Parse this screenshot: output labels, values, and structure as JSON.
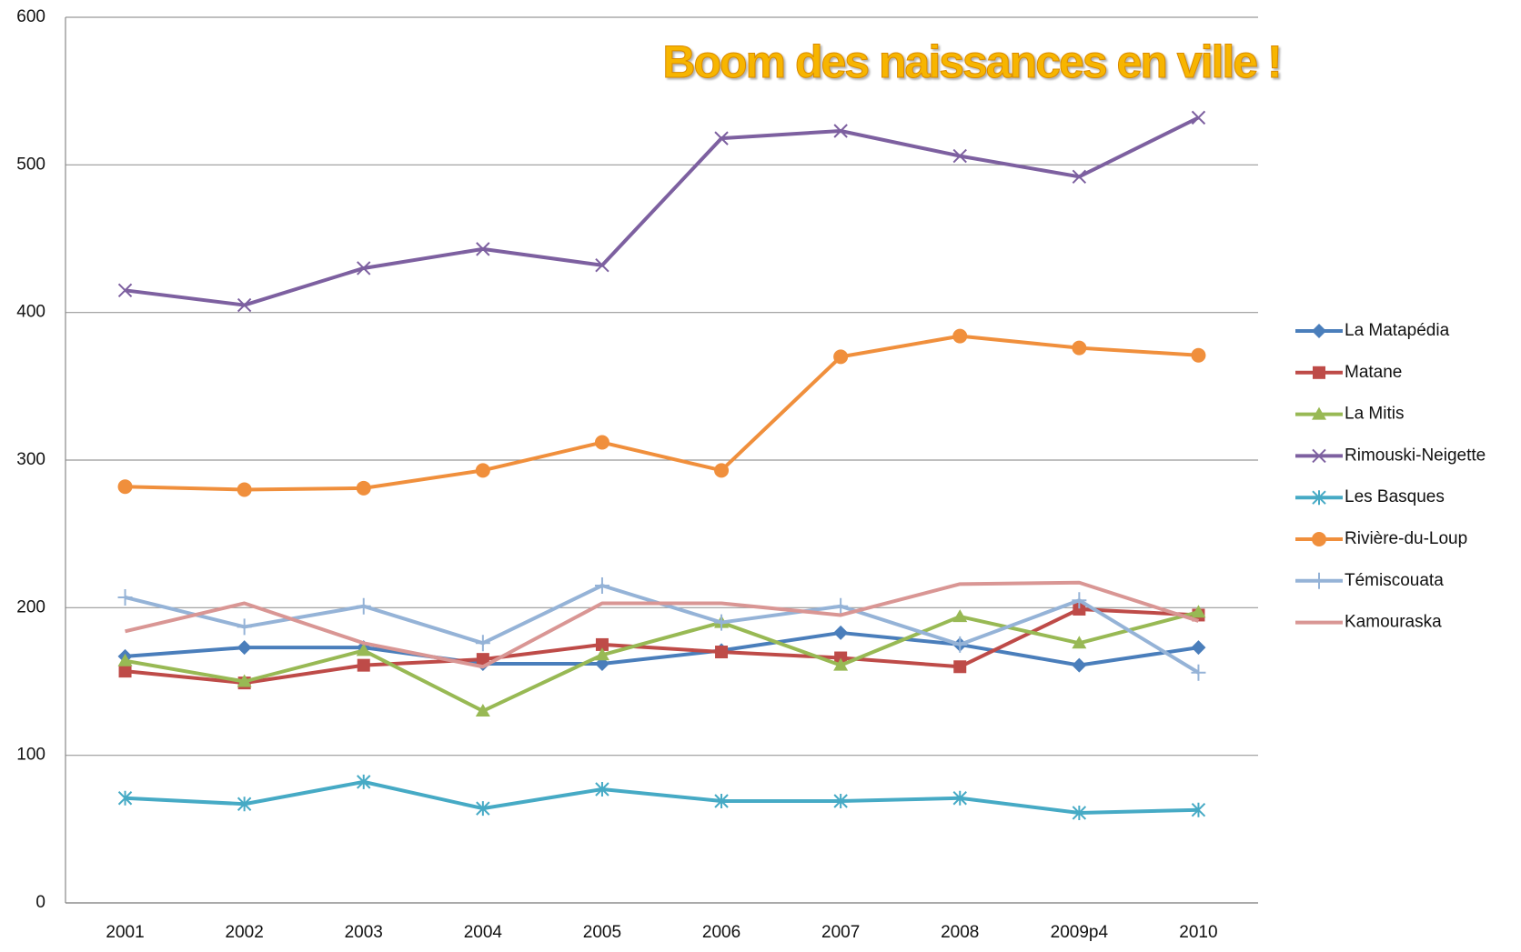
{
  "chart_data": {
    "type": "line",
    "title": "Boom des naissances en ville !",
    "categories": [
      "2001",
      "2002",
      "2003",
      "2004",
      "2005",
      "2006",
      "2007",
      "2008",
      "2009p4",
      "2010"
    ],
    "series": [
      {
        "name": "La Matapédia",
        "color": "#4a7ebb",
        "marker": "diamond",
        "values": [
          167,
          173,
          173,
          162,
          162,
          171,
          183,
          175,
          161,
          173
        ]
      },
      {
        "name": "Matane",
        "color": "#be4b48",
        "marker": "square",
        "values": [
          157,
          149,
          161,
          165,
          175,
          170,
          166,
          160,
          199,
          195
        ]
      },
      {
        "name": "La Mitis",
        "color": "#98b954",
        "marker": "triangle",
        "values": [
          164,
          150,
          171,
          130,
          168,
          190,
          161,
          194,
          176,
          197
        ]
      },
      {
        "name": "Rimouski-Neigette",
        "color": "#7d60a0",
        "marker": "x",
        "values": [
          415,
          405,
          430,
          443,
          432,
          518,
          523,
          506,
          492,
          532
        ]
      },
      {
        "name": "Les Basques",
        "color": "#46aac5",
        "marker": "asterisk",
        "values": [
          71,
          67,
          82,
          64,
          77,
          69,
          69,
          71,
          61,
          63
        ]
      },
      {
        "name": "Rivière-du-Loup",
        "color": "#f08f3c",
        "marker": "circle",
        "values": [
          282,
          280,
          281,
          293,
          312,
          293,
          370,
          384,
          376,
          371
        ]
      },
      {
        "name": "Témiscouata",
        "color": "#95b3d7",
        "marker": "plus",
        "values": [
          207,
          187,
          201,
          176,
          215,
          190,
          201,
          175,
          205,
          156
        ]
      },
      {
        "name": "Kamouraska",
        "color": "#d99694",
        "marker": "none",
        "values": [
          184,
          203,
          176,
          160,
          203,
          203,
          195,
          216,
          217,
          191
        ]
      }
    ],
    "ylim": [
      0,
      600
    ],
    "yticks": [
      0,
      100,
      200,
      300,
      400,
      500,
      600
    ],
    "grid": true,
    "legend": "right"
  }
}
